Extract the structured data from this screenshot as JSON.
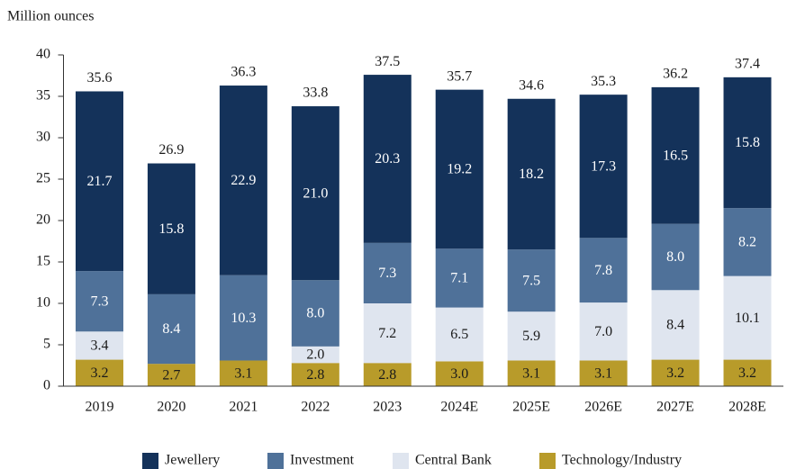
{
  "chart_data": {
    "type": "stacked_bar",
    "ylabel": "Million ounces",
    "categories": [
      "2019",
      "2020",
      "2021",
      "2022",
      "2023",
      "2024E",
      "2025E",
      "2026E",
      "2027E",
      "2028E"
    ],
    "series": [
      {
        "name": "Jewellery",
        "color": "#14325a",
        "label_color": "#ffffff",
        "values": [
          21.7,
          15.8,
          22.9,
          21.0,
          20.3,
          19.2,
          18.2,
          17.3,
          16.5,
          15.8
        ],
        "value_labels": [
          "21.7",
          "15.8",
          "22.9",
          "21.0",
          "20.3",
          "19.2",
          "18.2",
          "17.3",
          "16.5",
          "15.8"
        ]
      },
      {
        "name": "Investment",
        "color": "#4f7199",
        "label_color": "#ffffff",
        "values": [
          7.3,
          8.4,
          10.3,
          8.0,
          7.3,
          7.1,
          7.5,
          7.8,
          8.0,
          8.2
        ],
        "value_labels": [
          "7.3",
          "8.4",
          "10.3",
          "8.0",
          "7.3",
          "7.1",
          "7.5",
          "7.8",
          "8.0",
          "8.2"
        ]
      },
      {
        "name": "Central Bank",
        "color": "#dfe5ef",
        "label_color": "#1a1a1a",
        "values": [
          3.4,
          0,
          0,
          2.0,
          7.2,
          6.5,
          5.9,
          7.0,
          8.4,
          10.1
        ],
        "value_labels": [
          "3.4",
          null,
          null,
          "2.0",
          "7.2",
          "6.5",
          "5.9",
          "7.0",
          "8.4",
          "10.1"
        ]
      },
      {
        "name": "Technology/Industry",
        "color": "#b89b2a",
        "label_color": "#1a1a1a",
        "values": [
          3.2,
          2.7,
          3.1,
          2.8,
          2.8,
          3.0,
          3.1,
          3.1,
          3.2,
          3.2
        ],
        "value_labels": [
          "3.2",
          "2.7",
          "3.1",
          "2.8",
          "2.8",
          "3.0",
          "3.1",
          "3.1",
          "3.2",
          "3.2"
        ]
      }
    ],
    "totals": [
      35.6,
      26.9,
      36.3,
      33.8,
      37.5,
      35.7,
      34.6,
      35.3,
      36.2,
      37.4
    ],
    "ylim": [
      0,
      40
    ],
    "yticks": [
      0,
      5,
      10,
      15,
      20,
      25,
      30,
      35,
      40
    ],
    "legend": "bottom"
  }
}
